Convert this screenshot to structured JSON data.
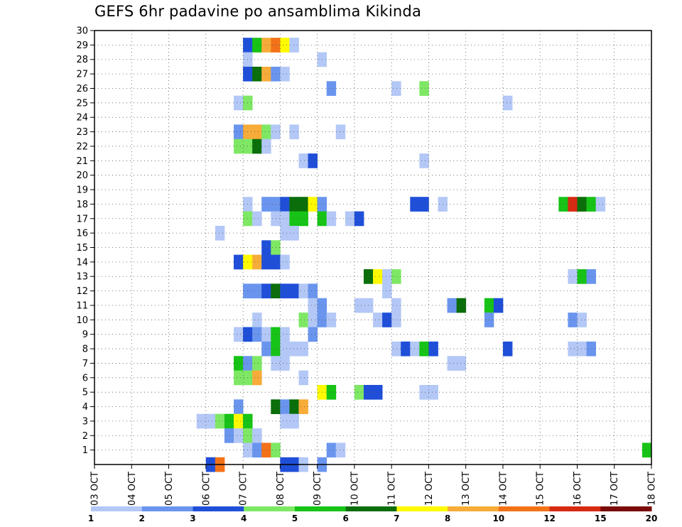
{
  "chart_data": {
    "type": "heatmap",
    "title": "GEFS 6hr padavine po ansamblima Kikinda",
    "xlabel": "",
    "ylabel": "",
    "x_ticks": [
      "03 OCT",
      "04 OCT",
      "05 OCT",
      "06 OCT",
      "07 OCT",
      "08 OCT",
      "09 OCT",
      "10 OCT",
      "11 OCT",
      "12 OCT",
      "13 OCT",
      "14 OCT",
      "15 OCT",
      "16 OCT",
      "17 OCT",
      "18 OCT"
    ],
    "x_range_days": [
      0,
      15
    ],
    "y_ticks": [
      "1",
      "2",
      "3",
      "4",
      "5",
      "6",
      "7",
      "8",
      "9",
      "10",
      "11",
      "12",
      "13",
      "14",
      "15",
      "16",
      "17",
      "18",
      "19",
      "20",
      "21",
      "22",
      "23",
      "24",
      "25",
      "26",
      "27",
      "28",
      "29",
      "30"
    ],
    "y_range": [
      0,
      30
    ],
    "grid": true,
    "legend": {
      "placement": "bottom",
      "labels": [
        "1",
        "2",
        "3",
        "4",
        "5",
        "6",
        "7",
        "8",
        "10",
        "12",
        "15",
        "20"
      ],
      "colors": [
        "#b3c8f6",
        "#6a95ee",
        "#1f4fd9",
        "#7ee864",
        "#16c316",
        "#0a6e0a",
        "#fffa00",
        "#f7ac39",
        "#f37218",
        "#d62a12",
        "#7a0b08"
      ]
    },
    "level_colors": [
      "#b3c8f6",
      "#6a95ee",
      "#1f4fd9",
      "#7ee864",
      "#16c316",
      "#0a6e0a",
      "#fffa00",
      "#f7ac39",
      "#f37218",
      "#d62a12",
      "#7a0b08"
    ],
    "cells": [
      {
        "m": 29,
        "d": 4.0,
        "l": [
          2,
          4,
          7,
          8,
          6,
          0
        ]
      },
      {
        "m": 28,
        "d": 4.0,
        "l": [
          0
        ]
      },
      {
        "m": 28,
        "d": 6.0,
        "l": [
          0
        ]
      },
      {
        "m": 27,
        "d": 4.0,
        "l": [
          2,
          5,
          7,
          1,
          0
        ]
      },
      {
        "m": 26,
        "d": 6.25,
        "l": [
          1
        ]
      },
      {
        "m": 26,
        "d": 8.0,
        "l": [
          0
        ]
      },
      {
        "m": 26,
        "d": 8.75,
        "l": [
          3
        ]
      },
      {
        "m": 25,
        "d": 3.75,
        "l": [
          0,
          3
        ]
      },
      {
        "m": 25,
        "d": 11.0,
        "l": [
          0
        ]
      },
      {
        "m": 23,
        "d": 3.75,
        "l": [
          1,
          7,
          7,
          3,
          0
        ]
      },
      {
        "m": 23,
        "d": 5.25,
        "l": [
          0
        ]
      },
      {
        "m": 23,
        "d": 6.5,
        "l": [
          0
        ]
      },
      {
        "m": 22,
        "d": 3.75,
        "l": [
          3,
          3,
          5,
          0
        ]
      },
      {
        "m": 21,
        "d": 5.5,
        "l": [
          0,
          2
        ]
      },
      {
        "m": 21,
        "d": 8.75,
        "l": [
          0
        ]
      },
      {
        "m": 18,
        "d": 4.0,
        "l": [
          0
        ]
      },
      {
        "m": 18,
        "d": 4.5,
        "l": [
          1,
          1,
          2,
          5,
          5,
          6,
          1
        ]
      },
      {
        "m": 18,
        "d": 8.5,
        "l": [
          2,
          2
        ]
      },
      {
        "m": 18,
        "d": 9.25,
        "l": [
          0
        ]
      },
      {
        "m": 18,
        "d": 12.5,
        "l": [
          4,
          9,
          5,
          4,
          0
        ]
      },
      {
        "m": 17,
        "d": 4.0,
        "l": [
          3,
          0
        ]
      },
      {
        "m": 17,
        "d": 4.75,
        "l": [
          0,
          0,
          4,
          4
        ]
      },
      {
        "m": 17,
        "d": 6.0,
        "l": [
          4,
          0
        ]
      },
      {
        "m": 17,
        "d": 6.75,
        "l": [
          0,
          2
        ]
      },
      {
        "m": 16,
        "d": 3.25,
        "l": [
          0
        ]
      },
      {
        "m": 16,
        "d": 5.0,
        "l": [
          0,
          0
        ]
      },
      {
        "m": 15,
        "d": 4.5,
        "l": [
          2,
          3
        ]
      },
      {
        "m": 14,
        "d": 3.75,
        "l": [
          2,
          6,
          7,
          2,
          2,
          0
        ]
      },
      {
        "m": 13,
        "d": 7.25,
        "l": [
          5,
          6,
          0,
          3
        ]
      },
      {
        "m": 13,
        "d": 12.75,
        "l": [
          0,
          4,
          1
        ]
      },
      {
        "m": 12,
        "d": 4.0,
        "l": [
          1,
          1,
          2,
          5,
          2,
          2,
          0
        ]
      },
      {
        "m": 12,
        "d": 5.75,
        "l": [
          1
        ]
      },
      {
        "m": 12,
        "d": 7.75,
        "l": [
          0
        ]
      },
      {
        "m": 11,
        "d": 5.75,
        "l": [
          0,
          1
        ]
      },
      {
        "m": 11,
        "d": 7.0,
        "l": [
          0,
          0
        ]
      },
      {
        "m": 11,
        "d": 8.0,
        "l": [
          0
        ]
      },
      {
        "m": 11,
        "d": 9.5,
        "l": [
          1,
          5
        ]
      },
      {
        "m": 11,
        "d": 10.5,
        "l": [
          4,
          2
        ]
      },
      {
        "m": 10,
        "d": 4.25,
        "l": [
          0
        ]
      },
      {
        "m": 10,
        "d": 5.5,
        "l": [
          3,
          0,
          1
        ]
      },
      {
        "m": 10,
        "d": 6.25,
        "l": [
          0
        ]
      },
      {
        "m": 10,
        "d": 7.5,
        "l": [
          0,
          2,
          0
        ]
      },
      {
        "m": 10,
        "d": 10.5,
        "l": [
          1
        ]
      },
      {
        "m": 10,
        "d": 12.75,
        "l": [
          1,
          0
        ]
      },
      {
        "m": 9,
        "d": 3.75,
        "l": [
          0,
          2,
          1,
          0,
          4
        ]
      },
      {
        "m": 9,
        "d": 5.0,
        "l": [
          0
        ]
      },
      {
        "m": 9,
        "d": 5.75,
        "l": [
          1
        ]
      },
      {
        "m": 8,
        "d": 4.5,
        "l": [
          1,
          4
        ]
      },
      {
        "m": 8,
        "d": 5.0,
        "l": [
          0,
          0,
          0
        ]
      },
      {
        "m": 8,
        "d": 8.0,
        "l": [
          0,
          2,
          0,
          4,
          2
        ]
      },
      {
        "m": 8,
        "d": 11.0,
        "l": [
          2
        ]
      },
      {
        "m": 8,
        "d": 12.75,
        "l": [
          0,
          0,
          1
        ]
      },
      {
        "m": 7,
        "d": 3.75,
        "l": [
          4,
          1,
          3
        ]
      },
      {
        "m": 7,
        "d": 4.75,
        "l": [
          0,
          0
        ]
      },
      {
        "m": 7,
        "d": 9.5,
        "l": [
          0,
          0
        ]
      },
      {
        "m": 6,
        "d": 3.75,
        "l": [
          3,
          3,
          7
        ]
      },
      {
        "m": 6,
        "d": 5.5,
        "l": [
          0
        ]
      },
      {
        "m": 5,
        "d": 6.0,
        "l": [
          6,
          4
        ]
      },
      {
        "m": 5,
        "d": 7.0,
        "l": [
          3,
          2,
          2
        ]
      },
      {
        "m": 5,
        "d": 8.75,
        "l": [
          0,
          0
        ]
      },
      {
        "m": 4,
        "d": 3.75,
        "l": [
          1
        ]
      },
      {
        "m": 4,
        "d": 4.75,
        "l": [
          5,
          1,
          5,
          7
        ]
      },
      {
        "m": 3,
        "d": 2.75,
        "l": [
          0,
          0,
          3,
          4,
          6,
          4
        ]
      },
      {
        "m": 3,
        "d": 5.0,
        "l": [
          0,
          0
        ]
      },
      {
        "m": 2,
        "d": 3.5,
        "l": [
          1,
          0,
          3,
          0
        ]
      },
      {
        "m": 1,
        "d": 4.0,
        "l": [
          0,
          1,
          8
        ]
      },
      {
        "m": 1,
        "d": 4.75,
        "l": [
          3
        ]
      },
      {
        "m": 1,
        "d": 6.25,
        "l": [
          1,
          0
        ]
      },
      {
        "m": 1,
        "d": 14.75,
        "l": [
          4
        ]
      },
      {
        "m": 0,
        "d": 3.0,
        "l": [
          2,
          8
        ]
      },
      {
        "m": 0,
        "d": 5.0,
        "l": [
          2,
          2,
          0
        ]
      },
      {
        "m": 0,
        "d": 6.0,
        "l": [
          1
        ]
      }
    ]
  }
}
